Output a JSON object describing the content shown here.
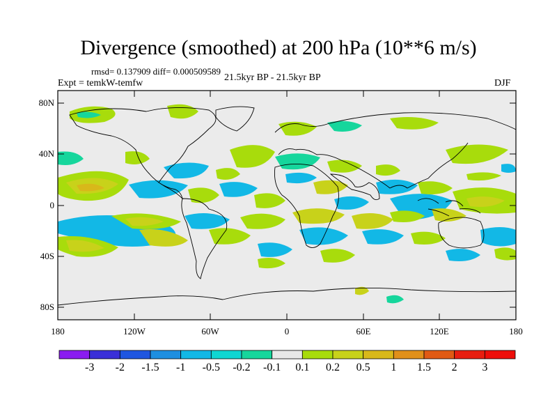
{
  "title": "Divergence (smoothed) at 200 hPa (10**6 m/s)",
  "stats_line": "rmsd= 0.137909 diff= 0.000509589",
  "experiment": "Expt = temkW-temfw",
  "period": "21.5kyr BP - 21.5kyr BP",
  "season": "DJF",
  "lat_labels": [
    "80N",
    "40N",
    "0",
    "40S",
    "80S"
  ],
  "lon_labels": [
    "180",
    "120W",
    "60W",
    "0",
    "60E",
    "120E",
    "180"
  ],
  "colorbar": {
    "labels": [
      "-3",
      "-2",
      "-1.5",
      "-1",
      "-0.5",
      "-0.2",
      "-0.1",
      "0.1",
      "0.2",
      "0.5",
      "1",
      "1.5",
      "2",
      "3"
    ],
    "colors": [
      "#8a1cf0",
      "#3a2fd8",
      "#1f56e0",
      "#1e8fe0",
      "#12b8e6",
      "#0fd6d2",
      "#16d69c",
      "#e8e8e8",
      "#a8dc0c",
      "#c8d21a",
      "#d8b81a",
      "#e0901a",
      "#e05a14",
      "#e81e10",
      "#ee0e0a"
    ]
  }
}
